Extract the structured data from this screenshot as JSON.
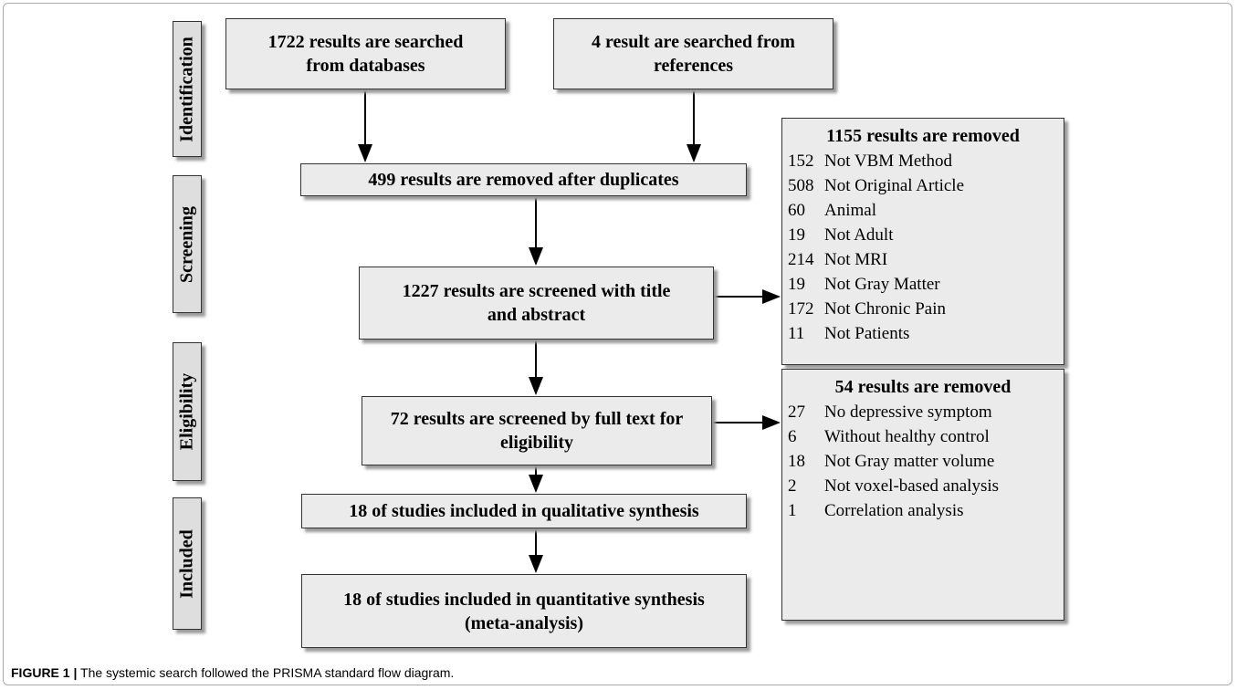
{
  "stages": [
    "Identification",
    "Screening",
    "Eligibility",
    "Included"
  ],
  "boxes": {
    "databases": [
      "1722 results are searched",
      "from databases"
    ],
    "references": [
      "4 result are searched from",
      "references"
    ],
    "duplicates": [
      "499 results are removed after duplicates"
    ],
    "screened": [
      "1227 results are screened with title",
      "and abstract"
    ],
    "fulltext": [
      "72 results are screened by full text for",
      "eligibility"
    ],
    "qualitative": [
      "18 of studies included in qualitative synthesis"
    ],
    "quantitative": [
      "18 of studies included in quantitative synthesis",
      "(meta-analysis)"
    ]
  },
  "removed_screening": {
    "title": "1155 results are removed",
    "items": [
      {
        "count": 152,
        "reason": "Not VBM Method"
      },
      {
        "count": 508,
        "reason": "Not Original Article"
      },
      {
        "count": 60,
        "reason": "Animal"
      },
      {
        "count": 19,
        "reason": "Not Adult"
      },
      {
        "count": 214,
        "reason": "Not MRI"
      },
      {
        "count": 19,
        "reason": "Not Gray Matter"
      },
      {
        "count": 172,
        "reason": "Not Chronic Pain"
      },
      {
        "count": 11,
        "reason": "Not Patients"
      }
    ]
  },
  "removed_eligibility": {
    "title": "54 results are removed",
    "items": [
      {
        "count": 27,
        "reason": "No depressive symptom"
      },
      {
        "count": 6,
        "reason": "Without healthy control"
      },
      {
        "count": 18,
        "reason": "Not Gray matter volume"
      },
      {
        "count": 2,
        "reason": "Not voxel-based analysis"
      },
      {
        "count": 1,
        "reason": "Correlation analysis"
      }
    ]
  },
  "caption": {
    "label": "FIGURE 1 |",
    "text": "The systemic search followed the PRISMA standard flow diagram."
  }
}
